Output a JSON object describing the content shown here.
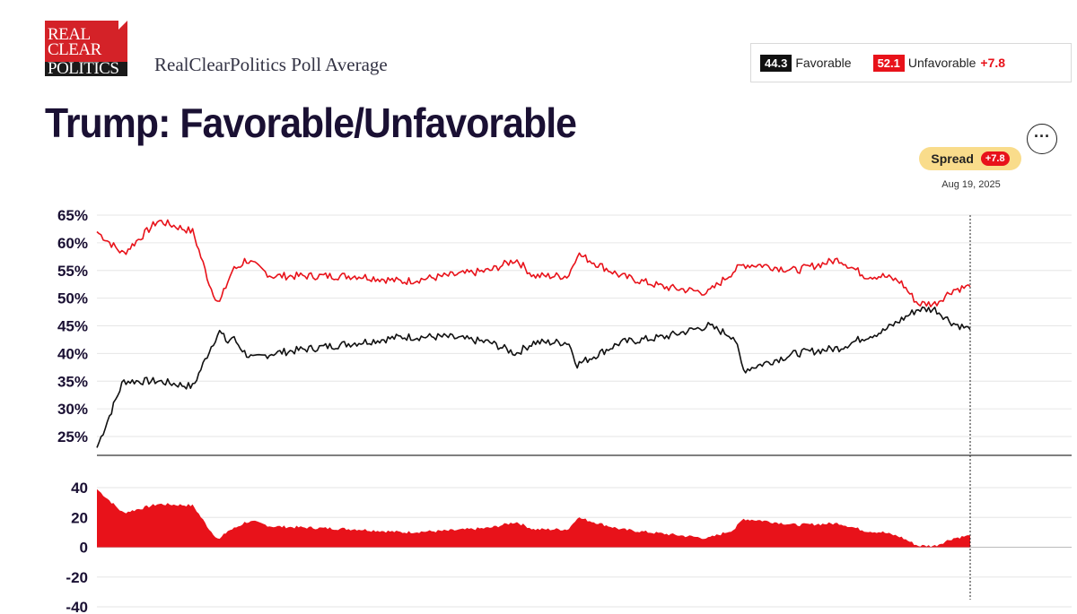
{
  "header": {
    "logo_lines": [
      "REAL",
      "CLEAR",
      "POLITICS"
    ],
    "subtitle": "RealClearPolitics Poll Average",
    "title": "Trump: Favorable/Unfavorable",
    "menu_label": "···"
  },
  "legend": {
    "favorable_value": "44.3",
    "favorable_label": "Favorable",
    "unfavorable_value": "52.1",
    "unfavorable_label": "Unfavorable",
    "spread_value": "+7.8"
  },
  "tooltip": {
    "label": "Spread",
    "value": "+7.8",
    "date": "Aug 19, 2025"
  },
  "colors": {
    "favorable": "#111111",
    "unfavorable": "#e8121a",
    "grid": "#e6e6e6",
    "text": "#1a1033"
  },
  "chart_data": [
    {
      "type": "line",
      "ylim": [
        22,
        66
      ],
      "y_ticks": [
        "65%",
        "60%",
        "55%",
        "50%",
        "45%",
        "40%",
        "35%",
        "30%",
        "25%"
      ],
      "y_tick_values": [
        65,
        60,
        55,
        50,
        45,
        40,
        35,
        30,
        25
      ],
      "x": [
        0,
        0.03,
        0.07,
        0.11,
        0.13,
        0.14,
        0.15,
        0.155,
        0.165,
        0.17,
        0.18,
        0.2,
        0.25,
        0.3,
        0.35,
        0.4,
        0.45,
        0.48,
        0.5,
        0.54,
        0.55,
        0.6,
        0.65,
        0.7,
        0.73,
        0.74,
        0.76,
        0.8,
        0.85,
        0.88,
        0.9,
        0.92,
        0.94,
        0.96,
        0.98,
        1.0
      ],
      "series": [
        {
          "name": "Favorable",
          "values": [
            23,
            35,
            35,
            34,
            41,
            44,
            42,
            43,
            41,
            40,
            39,
            40,
            41,
            42,
            43,
            43,
            42,
            40,
            42,
            42,
            38,
            42,
            43,
            45,
            43,
            37,
            38,
            40,
            41,
            43,
            44,
            46,
            48,
            48,
            45.5,
            44.3
          ]
        },
        {
          "name": "Unfavorable",
          "values": [
            62,
            58,
            64,
            62,
            52,
            49,
            53,
            55,
            56,
            57,
            56,
            54,
            54,
            54,
            53,
            54,
            55,
            57,
            54,
            54,
            58,
            54,
            52,
            51,
            55,
            56,
            56,
            55,
            57,
            54,
            54,
            53,
            49,
            49,
            51.5,
            52.1
          ]
        }
      ]
    },
    {
      "type": "area",
      "ylim": [
        -40,
        40
      ],
      "y_ticks": [
        "40",
        "20",
        "0",
        "-20",
        "-40"
      ],
      "y_tick_values": [
        40,
        20,
        0,
        -20,
        -40
      ],
      "x": [
        0,
        0.03,
        0.07,
        0.11,
        0.13,
        0.14,
        0.15,
        0.155,
        0.165,
        0.17,
        0.18,
        0.2,
        0.25,
        0.3,
        0.35,
        0.4,
        0.45,
        0.48,
        0.5,
        0.54,
        0.55,
        0.6,
        0.65,
        0.7,
        0.73,
        0.74,
        0.76,
        0.8,
        0.85,
        0.88,
        0.9,
        0.92,
        0.94,
        0.96,
        0.98,
        1.0
      ],
      "series": [
        {
          "name": "Spread",
          "values": [
            39,
            23,
            29,
            28,
            11,
            5,
            11,
            12,
            15,
            17,
            17,
            14,
            13,
            12,
            10,
            11,
            13,
            17,
            12,
            12,
            20,
            12,
            9,
            6,
            12,
            19,
            18,
            15,
            16,
            11,
            10,
            7,
            1,
            1,
            6,
            7.8
          ]
        }
      ]
    }
  ]
}
